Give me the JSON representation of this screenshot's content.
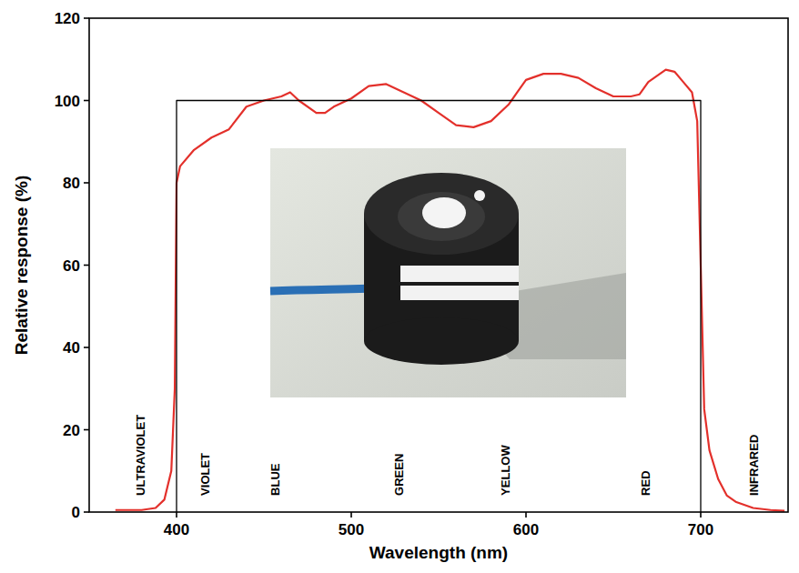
{
  "chart_data": {
    "type": "line",
    "x_label": "Wavelength (nm)",
    "y_label": "Relative response (%)",
    "xlim": [
      350,
      750
    ],
    "xticks": [
      400,
      500,
      600,
      700
    ],
    "ylim": [
      0,
      120
    ],
    "yticks": [
      0,
      20,
      40,
      60,
      80,
      100,
      120
    ],
    "grid": false,
    "series": [
      {
        "color": "#e3302b",
        "line_style": "solid",
        "x": [
          365,
          380,
          388,
          393,
          397,
          399,
          400,
          402,
          410,
          420,
          430,
          440,
          450,
          460,
          465,
          470,
          480,
          485,
          490,
          500,
          510,
          520,
          530,
          540,
          550,
          560,
          570,
          580,
          590,
          595,
          600,
          610,
          620,
          630,
          640,
          650,
          660,
          665,
          670,
          680,
          685,
          690,
          695,
          698,
          700,
          702,
          705,
          710,
          715,
          720,
          730,
          740,
          748
        ],
        "values": [
          0.5,
          0.5,
          1,
          3,
          10,
          30,
          80,
          84,
          88,
          91,
          93,
          98.5,
          100,
          101,
          102,
          100,
          97,
          97,
          98.5,
          100.5,
          103.5,
          104,
          102,
          100,
          97,
          94,
          93.5,
          95,
          99,
          102,
          105,
          106.5,
          106.5,
          105.5,
          103,
          101,
          101,
          101.5,
          104.5,
          107.5,
          107,
          104.5,
          102,
          95,
          60,
          25,
          15,
          8,
          4,
          2.5,
          1,
          0.5,
          0.3
        ]
      },
      {
        "color": "#000000",
        "line_style": "solid",
        "x": [
          400,
          400,
          700,
          700
        ],
        "values": [
          0,
          100,
          100,
          0
        ]
      }
    ],
    "annotations": [
      {
        "text": "ULTRAVIOLET",
        "x": 379,
        "y": 4
      },
      {
        "text": "VIOLET",
        "x": 416,
        "y": 4
      },
      {
        "text": "BLUE",
        "x": 456,
        "y": 4
      },
      {
        "text": "GREEN",
        "x": 527,
        "y": 4
      },
      {
        "text": "YELLOW",
        "x": 588,
        "y": 4
      },
      {
        "text": "RED",
        "x": 668,
        "y": 4
      },
      {
        "text": "INFRARED",
        "x": 730,
        "y": 4
      }
    ]
  }
}
